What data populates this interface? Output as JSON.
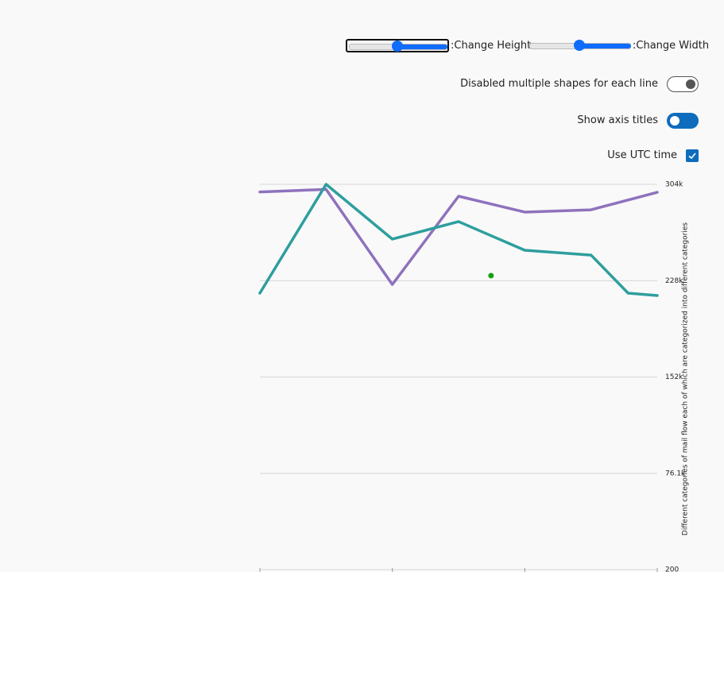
{
  "controls": {
    "change_height": ":Change Height",
    "change_width": ":Change Width",
    "multiple_shapes": "Disabled multiple shapes for each line",
    "axis_titles": "Show axis titles",
    "utc_time": "Use UTC time"
  },
  "chart_data": {
    "type": "line",
    "y_axis_title": "Different categories of mail flow each of which are categorized into different categories",
    "xlim": [
      0,
      6
    ],
    "xticks": [
      0,
      2,
      4,
      6
    ],
    "ylim": [
      200,
      304000
    ],
    "yticks": [
      200,
      {
        "value": 76100,
        "label": "76.1k"
      },
      {
        "value": 152000,
        "label": "152k"
      },
      {
        "value": 228000,
        "label": "228k"
      },
      {
        "value": 304000,
        "label": "304k"
      }
    ],
    "grid": true,
    "series": [
      {
        "color": "#8e72bd",
        "x": [
          0,
          1,
          2,
          3,
          4,
          5,
          6
        ],
        "values": [
          298000,
          300000,
          225000,
          294600,
          282100,
          283900,
          297700
        ]
      },
      {
        "color": "#2e9e9e",
        "x": [
          0,
          1,
          2,
          3,
          4,
          5,
          5.56,
          6
        ],
        "values": [
          218200,
          304000,
          260800,
          274600,
          252000,
          248200,
          218200,
          216300
        ]
      },
      {
        "color": "#13a10e",
        "x": [
          3.49
        ],
        "values": [
          232000
        ],
        "points_only": true
      }
    ]
  }
}
